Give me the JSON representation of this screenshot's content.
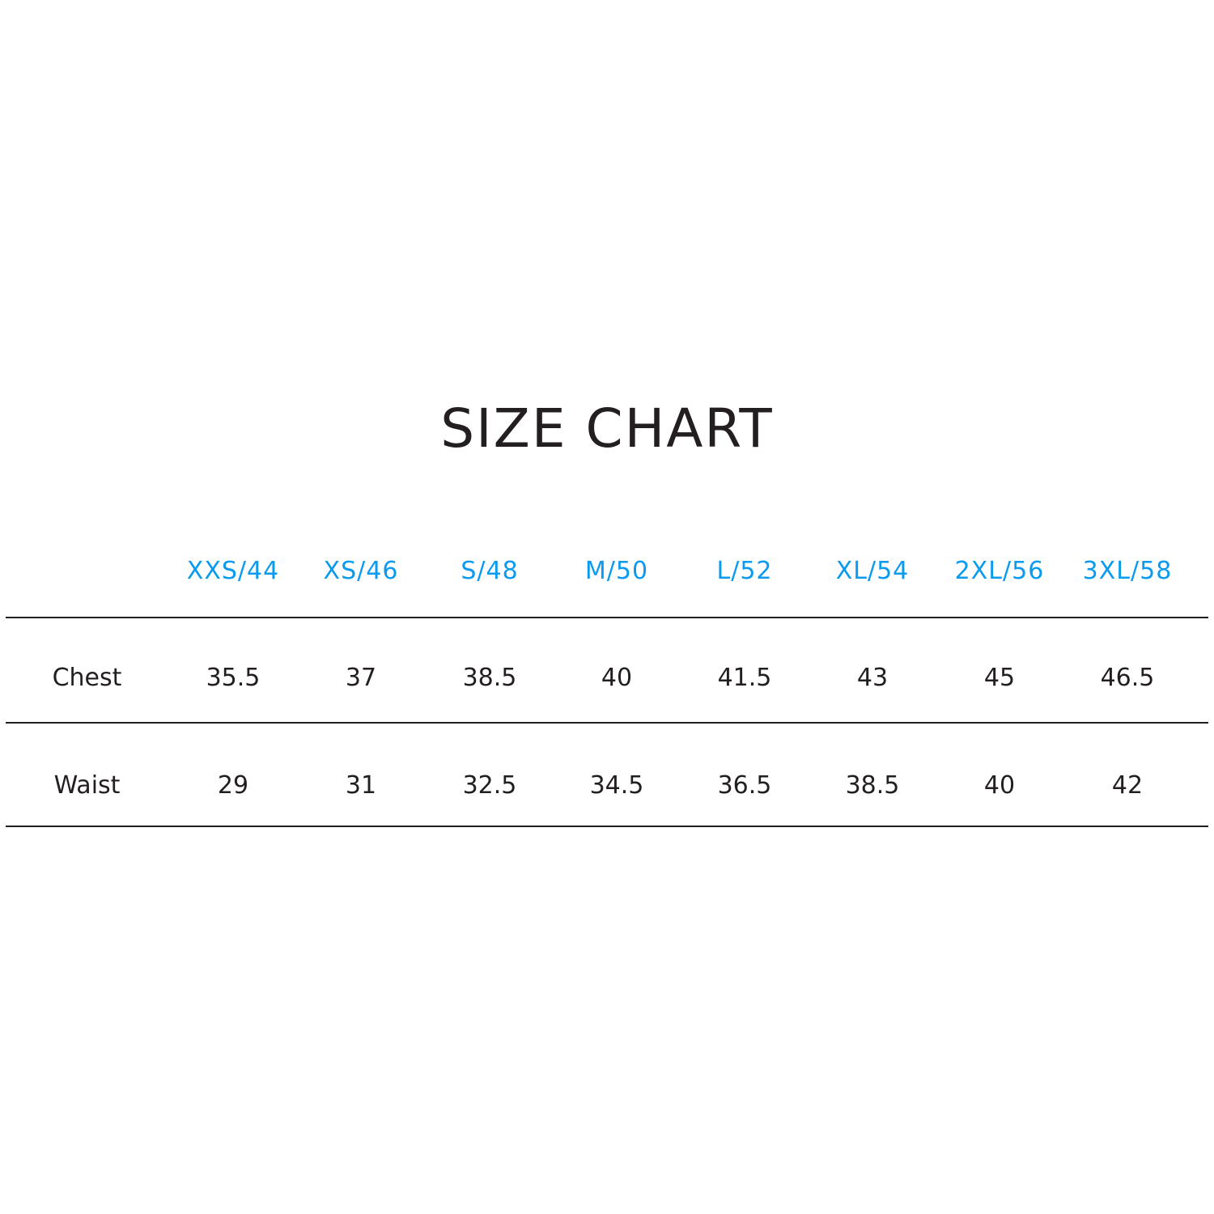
{
  "title": "SIZE CHART",
  "accent_color": "#0a9af0",
  "table": {
    "columns": [
      "XXS/44",
      "XS/46",
      "S/48",
      "M/50",
      "L/52",
      "XL/54",
      "2XL/56",
      "3XL/58"
    ],
    "rows": [
      {
        "label": "Chest",
        "values": [
          "35.5",
          "37",
          "38.5",
          "40",
          "41.5",
          "43",
          "45",
          "46.5"
        ]
      },
      {
        "label": "Waist",
        "values": [
          "29",
          "31",
          "32.5",
          "34.5",
          "36.5",
          "38.5",
          "40",
          "42"
        ]
      }
    ]
  }
}
